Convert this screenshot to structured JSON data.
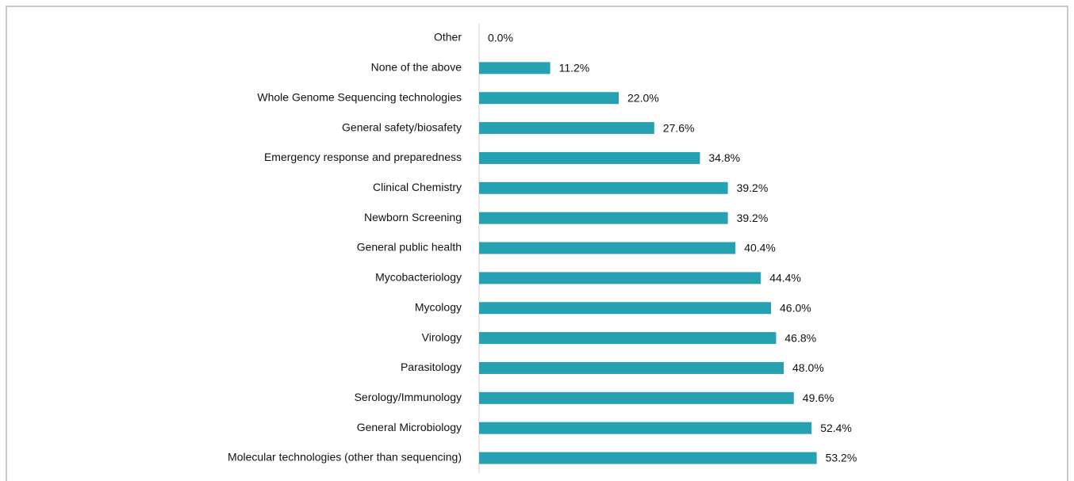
{
  "chart_data": {
    "type": "bar",
    "orientation": "horizontal",
    "categories": [
      "Other",
      "None of the above",
      "Whole Genome Sequencing technologies",
      "General safety/biosafety",
      "Emergency response and preparedness",
      "Clinical Chemistry",
      "Newborn Screening",
      "General public health",
      "Mycobacteriology",
      "Mycology",
      "Virology",
      "Parasitology",
      "Serology/Immunology",
      "General Microbiology",
      "Molecular technologies (other than sequencing)"
    ],
    "values": [
      0.0,
      11.2,
      22.0,
      27.6,
      34.8,
      39.2,
      39.2,
      40.4,
      44.4,
      46.0,
      46.8,
      48.0,
      49.6,
      52.4,
      53.2
    ],
    "value_labels": [
      "0.0%",
      "11.2%",
      "22.0%",
      "27.6%",
      "34.8%",
      "39.2%",
      "39.2%",
      "40.4%",
      "44.4%",
      "46.0%",
      "46.8%",
      "48.0%",
      "49.6%",
      "52.4%",
      "53.2%"
    ],
    "color": "#26a1b1",
    "xlim": [
      0,
      60
    ]
  }
}
